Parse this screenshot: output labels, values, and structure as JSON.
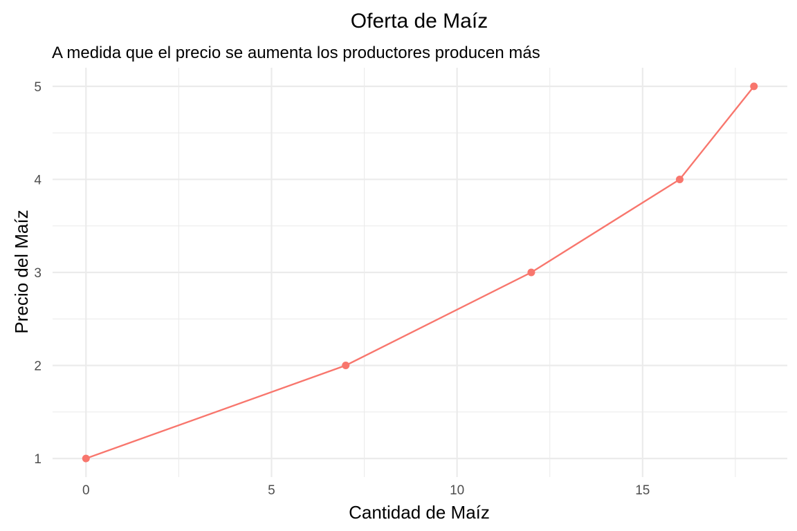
{
  "chart_data": {
    "type": "line",
    "title": "Oferta de Maíz",
    "subtitle": "A medida que el precio se aumenta los productores producen más",
    "xlabel": "Cantidad de Maíz",
    "ylabel": "Precio del Maíz",
    "x": [
      0,
      7,
      12,
      16,
      18
    ],
    "series": [
      {
        "values": [
          1,
          2,
          3,
          4,
          5
        ],
        "color": "#F8766D"
      }
    ],
    "xticks": [
      0,
      5,
      10,
      15
    ],
    "yticks": [
      1,
      2,
      3,
      4,
      5
    ],
    "xlim": [
      -0.9,
      18.9
    ],
    "ylim": [
      0.8,
      5.2
    ],
    "grid": true,
    "legend": "none"
  }
}
